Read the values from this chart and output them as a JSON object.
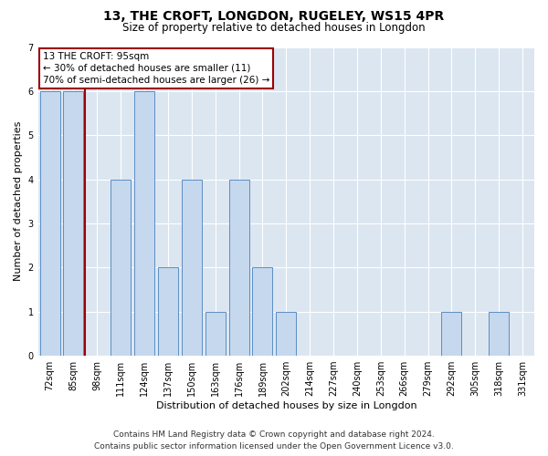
{
  "title": "13, THE CROFT, LONGDON, RUGELEY, WS15 4PR",
  "subtitle": "Size of property relative to detached houses in Longdon",
  "xlabel": "Distribution of detached houses by size in Longdon",
  "ylabel": "Number of detached properties",
  "categories": [
    "72sqm",
    "85sqm",
    "98sqm",
    "111sqm",
    "124sqm",
    "137sqm",
    "150sqm",
    "163sqm",
    "176sqm",
    "189sqm",
    "202sqm",
    "214sqm",
    "227sqm",
    "240sqm",
    "253sqm",
    "266sqm",
    "279sqm",
    "292sqm",
    "305sqm",
    "318sqm",
    "331sqm"
  ],
  "values": [
    6,
    6,
    0,
    4,
    6,
    2,
    4,
    1,
    4,
    2,
    1,
    0,
    0,
    0,
    0,
    0,
    0,
    1,
    0,
    1,
    0
  ],
  "bar_color": "#c5d8ed",
  "bar_edge_color": "#5b8ec4",
  "highlight_bar_index": 2,
  "highlight_line_color": "#9c0006",
  "annotation_lines": [
    "13 THE CROFT: 95sqm",
    "← 30% of detached houses are smaller (11)",
    "70% of semi-detached houses are larger (26) →"
  ],
  "annotation_box_color": "#9c0006",
  "ylim": [
    0,
    7
  ],
  "yticks": [
    0,
    1,
    2,
    3,
    4,
    5,
    6,
    7
  ],
  "footer": "Contains HM Land Registry data © Crown copyright and database right 2024.\nContains public sector information licensed under the Open Government Licence v3.0.",
  "bg_color": "#dce6f1",
  "grid_color": "#ffffff",
  "title_fontsize": 10,
  "subtitle_fontsize": 8.5,
  "xlabel_fontsize": 8,
  "ylabel_fontsize": 8,
  "tick_fontsize": 7,
  "footer_fontsize": 6.5,
  "ann_fontsize": 7.5
}
